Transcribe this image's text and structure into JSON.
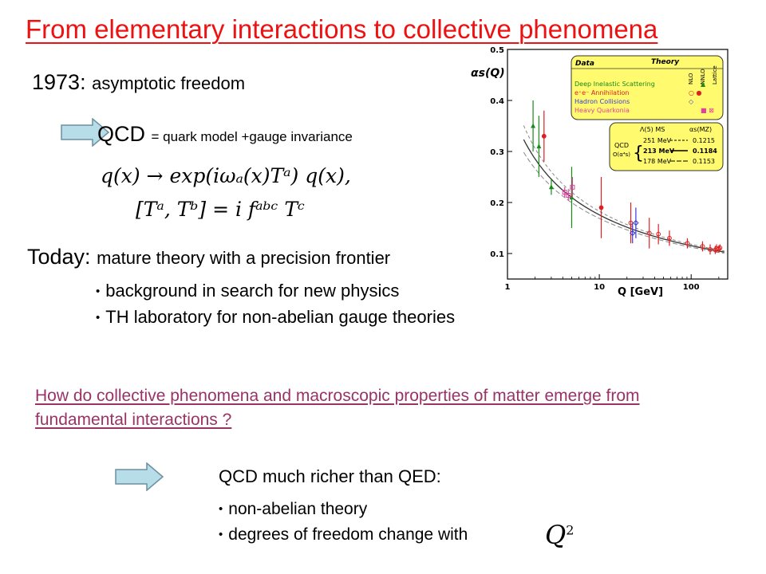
{
  "slide": {
    "title": "From elementary interactions to collective phenomena",
    "year_prefix": "1973:",
    "year_text": "asymptotic freedom",
    "qcd_big": "QCD",
    "qcd_small": "= quark model +gauge invariance",
    "equation_line1": "q(x) → exp(iωₐ(x)Tᵃ) q(x),",
    "equation_line2": "[Tᵃ, Tᵇ] = i fᵃᵇᶜ Tᶜ",
    "today_prefix": "Today:",
    "today_text": "mature theory with a precision frontier",
    "today_bullets": [
      "background in search for new physics",
      "TH laboratory for non-abelian gauge theories"
    ],
    "question": "How do collective phenomena and macroscopic properties of matter emerge from fundamental interactions ?",
    "richer": "QCD much richer than QED:",
    "richer_bullets": [
      "non-abelian theory",
      "degrees of freedom change with"
    ],
    "q2_symbol": "Q",
    "q2_exp": "2"
  },
  "colors": {
    "title": "#ee1111",
    "question": "#993366",
    "arrow_fill": "#b7dde8",
    "arrow_stroke": "#6d8fa0",
    "legend_bg": "#fffa6e",
    "dis": "#1a8a1a",
    "ee": "#e02020",
    "hadron": "#3a3ad0",
    "quarkonia": "#e040a0"
  },
  "chart_data": {
    "type": "scatter",
    "ylabel": "αs(Q)",
    "xlabel": "Q [GeV]",
    "x_scale": "log",
    "xlim": [
      1,
      250
    ],
    "ylim": [
      0.05,
      0.5
    ],
    "x_ticks": [
      "1",
      "10",
      "100"
    ],
    "y_ticks": [
      "0.1",
      "0.2",
      "0.3",
      "0.4",
      "0.5"
    ],
    "legend": {
      "header_data": "Data",
      "header_theory": "Theory",
      "columns": [
        "NLO",
        "NNLO",
        "Lattice"
      ],
      "rows": [
        {
          "label": "Deep Inelastic Scattering",
          "symbol": "▲"
        },
        {
          "label": "e⁺e⁻ Annihilation",
          "symbol": "○ ●"
        },
        {
          "label": "Hadron Collisions",
          "symbol": "◇"
        },
        {
          "label": "Heavy Quarkonia",
          "symbol": "■ ⊠"
        }
      ]
    },
    "theory_box": {
      "col1": "Λ(5) MS",
      "col2": "αs(MZ)",
      "label1": "QCD",
      "label2": "O(α⁴s)",
      "rows": [
        {
          "lambda": "251 MeV",
          "alpha": "0.1215"
        },
        {
          "lambda": "213 MeV",
          "alpha": "0.1184"
        },
        {
          "lambda": "178 MeV",
          "alpha": "0.1153"
        }
      ]
    },
    "series": [
      {
        "name": "Deep Inelastic Scattering",
        "points": [
          {
            "x": 1.9,
            "y": 0.35,
            "err": 0.05
          },
          {
            "x": 2.2,
            "y": 0.31,
            "err": 0.06
          },
          {
            "x": 3.0,
            "y": 0.23,
            "err": 0.015
          },
          {
            "x": 5.0,
            "y": 0.21,
            "err": 0.06
          }
        ]
      },
      {
        "name": "e⁺e⁻ Annihilation",
        "points": [
          {
            "x": 2.5,
            "y": 0.33,
            "err": 0.05
          },
          {
            "x": 10.5,
            "y": 0.19,
            "err": 0.06
          },
          {
            "x": 22,
            "y": 0.16,
            "err": 0.04
          },
          {
            "x": 35,
            "y": 0.14,
            "err": 0.03
          },
          {
            "x": 44,
            "y": 0.138,
            "err": 0.02
          },
          {
            "x": 58,
            "y": 0.13,
            "err": 0.015
          },
          {
            "x": 91,
            "y": 0.12,
            "err": 0.01
          },
          {
            "x": 133,
            "y": 0.114,
            "err": 0.01
          },
          {
            "x": 161,
            "y": 0.108,
            "err": 0.01
          },
          {
            "x": 183,
            "y": 0.107,
            "err": 0.008
          },
          {
            "x": 189,
            "y": 0.11,
            "err": 0.008
          },
          {
            "x": 200,
            "y": 0.109,
            "err": 0.007
          },
          {
            "x": 206,
            "y": 0.111,
            "err": 0.007
          }
        ]
      },
      {
        "name": "Hadron Collisions",
        "points": [
          {
            "x": 23,
            "y": 0.14,
            "err": 0.02
          },
          {
            "x": 25,
            "y": 0.16,
            "err": 0.03
          }
        ]
      },
      {
        "name": "Heavy Quarkonia",
        "points": [
          {
            "x": 4.2,
            "y": 0.22,
            "err": 0.01
          },
          {
            "x": 4.6,
            "y": 0.214,
            "err": 0.01
          },
          {
            "x": 5.1,
            "y": 0.23,
            "err": 0.02
          }
        ]
      }
    ],
    "curves": [
      {
        "name": "251 MeV",
        "lambda": 0.251
      },
      {
        "name": "213 MeV",
        "lambda": 0.213
      },
      {
        "name": "178 MeV",
        "lambda": 0.178
      }
    ]
  }
}
